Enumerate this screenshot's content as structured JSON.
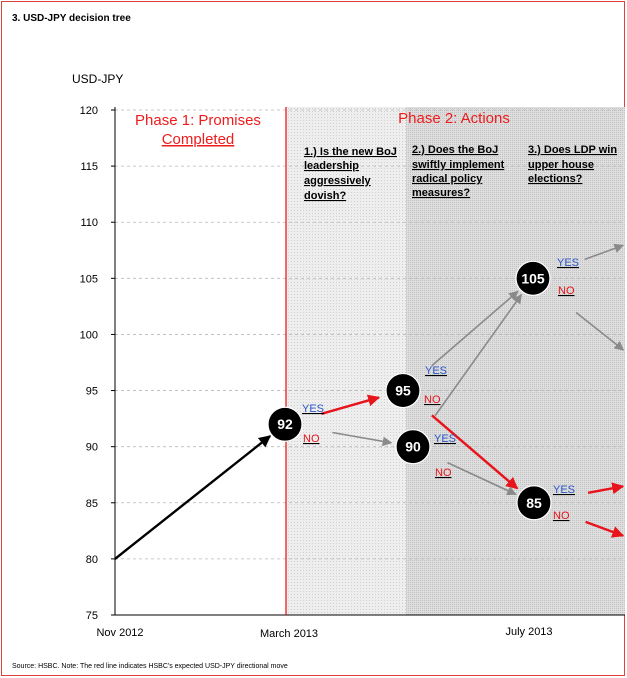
{
  "figure": {
    "title": "3. USD-JPY decision tree",
    "source": "Source: HSBC. Note: The red line indicates HSBC's expected USD-JPY directional move"
  },
  "colors": {
    "frame": "#e0403c",
    "phase_text": "#ee1c1c",
    "highlight_arrow": "#e8141b",
    "base_arrow": "#000000",
    "alt_arrow": "#8a8a8a",
    "yes_label": "#2b56c8",
    "no_label": "#e8141b",
    "node_fill": "#000000",
    "node_text": "#ffffff"
  },
  "chart_data": {
    "type": "line",
    "title": "3. USD-JPY decision tree",
    "ylabel": "USD-JPY",
    "xlabel": "",
    "ylim": [
      75,
      120
    ],
    "yticks": [
      75,
      80,
      85,
      90,
      95,
      100,
      105,
      110,
      115,
      120
    ],
    "xticks": [
      "Nov 2012",
      "March 2013",
      "July 2013"
    ],
    "grid": "horizontal dashed",
    "phases": [
      {
        "label_line1": "Phase 1: Promises",
        "label_line2": "Completed",
        "from": "Nov 2012",
        "to": "March 2013"
      },
      {
        "label_line1": "Phase 2: Actions",
        "label_line2": "",
        "from": "March 2013",
        "to": ""
      }
    ],
    "questions": [
      {
        "lines": [
          "1.) Is the new BoJ",
          "leadership",
          "aggressively",
          "dovish?"
        ]
      },
      {
        "lines": [
          "2.) Does the BoJ",
          "swiftly implement",
          "radical policy",
          "measures?"
        ]
      },
      {
        "lines": [
          "3.) Does LDP win",
          "upper house",
          "elections?"
        ]
      }
    ],
    "nodes": [
      {
        "id": "n92",
        "label": "92",
        "value": 92
      },
      {
        "id": "n95",
        "label": "95",
        "value": 95
      },
      {
        "id": "n90",
        "label": "90",
        "value": 90
      },
      {
        "id": "n105",
        "label": "105",
        "value": 105
      },
      {
        "id": "n85",
        "label": "85",
        "value": 85
      }
    ],
    "branch_labels": [
      {
        "text": "YES",
        "kind": "yes",
        "near": "n92"
      },
      {
        "text": "NO",
        "kind": "no",
        "near": "n92"
      },
      {
        "text": "YES",
        "kind": "yes",
        "near": "n95"
      },
      {
        "text": "NO",
        "kind": "no",
        "near": "n95"
      },
      {
        "text": "YES",
        "kind": "yes",
        "near": "n90"
      },
      {
        "text": "NO",
        "kind": "no",
        "near": "n90"
      },
      {
        "text": "YES",
        "kind": "yes",
        "near": "n105"
      },
      {
        "text": "NO",
        "kind": "no",
        "near": "n105"
      },
      {
        "text": "YES",
        "kind": "yes",
        "near": "n85"
      },
      {
        "text": "NO",
        "kind": "no",
        "near": "n85"
      }
    ],
    "edges": [
      {
        "from": "start",
        "to": "n92",
        "style": "base",
        "start_value": 80
      },
      {
        "from": "n92",
        "to": "n95",
        "style": "highlight"
      },
      {
        "from": "n92",
        "to": "n90",
        "style": "alt"
      },
      {
        "from": "n95",
        "to": "n105",
        "style": "alt"
      },
      {
        "from": "n95",
        "to": "n85",
        "style": "highlight"
      },
      {
        "from": "n90",
        "to": "n105",
        "style": "alt"
      },
      {
        "from": "n90",
        "to": "n85",
        "style": "alt"
      },
      {
        "from": "n105",
        "to": "out",
        "style": "alt",
        "end_value": 108
      },
      {
        "from": "n105",
        "to": "out",
        "style": "alt",
        "end_value": 98.5
      },
      {
        "from": "n85",
        "to": "out",
        "style": "highlight",
        "end_value": 86.5
      },
      {
        "from": "n85",
        "to": "out",
        "style": "highlight",
        "end_value": 82
      }
    ]
  }
}
